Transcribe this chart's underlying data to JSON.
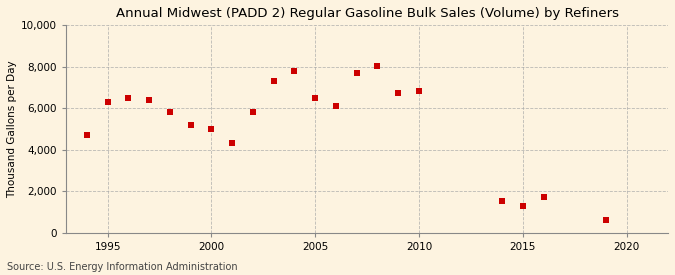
{
  "title": "Annual Midwest (PADD 2) Regular Gasoline Bulk Sales (Volume) by Refiners",
  "ylabel": "Thousand Gallons per Day",
  "source": "Source: U.S. Energy Information Administration",
  "background_color": "#fdf3e0",
  "years": [
    1994,
    1995,
    1996,
    1997,
    1998,
    1999,
    2000,
    2001,
    2002,
    2003,
    2004,
    2005,
    2006,
    2007,
    2008,
    2009,
    2010,
    2014,
    2015,
    2016,
    2019
  ],
  "values": [
    4700,
    6300,
    6500,
    6400,
    5800,
    5200,
    5000,
    4300,
    5800,
    7300,
    7800,
    6500,
    6100,
    7700,
    8050,
    6750,
    6850,
    1500,
    1300,
    1700,
    600
  ],
  "marker_color": "#cc0000",
  "marker_size": 4,
  "ylim": [
    0,
    10000
  ],
  "yticks": [
    0,
    2000,
    4000,
    6000,
    8000,
    10000
  ],
  "xlim": [
    1993,
    2022
  ],
  "xticks": [
    1995,
    2000,
    2005,
    2010,
    2015,
    2020
  ],
  "grid_color": "#aaaaaa",
  "title_fontsize": 9.5,
  "ylabel_fontsize": 7.5,
  "tick_fontsize": 7.5,
  "source_fontsize": 7
}
